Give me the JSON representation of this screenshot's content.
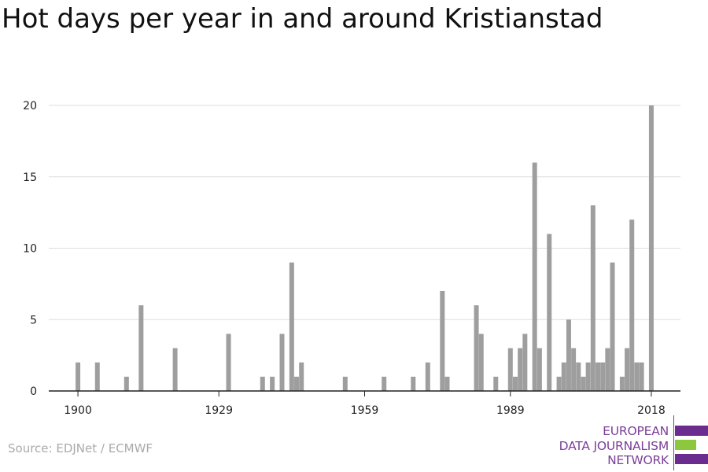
{
  "header": {
    "title": "Hot days per year in and around Kristianstad"
  },
  "footer": {
    "source": "Source: EDJNet / ECMWF"
  },
  "logo": {
    "lines": [
      "EUROPEAN",
      "DATA JOURNALISM",
      "NETWORK"
    ],
    "colors": {
      "text": "#7b3f98",
      "bar_purple": "#6a2c8e",
      "bar_green": "#8dc63f"
    }
  },
  "colors": {
    "bar": "#9e9e9e",
    "grid": "#dddddd",
    "axis": "#222222"
  },
  "chart_data": {
    "type": "bar",
    "title": "Hot days per year in and around Kristianstad",
    "xlabel": "",
    "ylabel": "",
    "x_ticks": [
      "1900",
      "1929",
      "1959",
      "1989",
      "2018"
    ],
    "y_ticks": [
      "0",
      "5",
      "10",
      "15",
      "20"
    ],
    "xlim": [
      1894,
      2024
    ],
    "ylim": [
      0,
      20
    ],
    "grid": true,
    "years": [
      1900,
      1904,
      1910,
      1913,
      1920,
      1931,
      1938,
      1940,
      1942,
      1944,
      1945,
      1946,
      1955,
      1963,
      1969,
      1972,
      1975,
      1976,
      1982,
      1983,
      1986,
      1989,
      1990,
      1991,
      1992,
      1994,
      1995,
      1997,
      1999,
      2000,
      2001,
      2002,
      2003,
      2004,
      2005,
      2006,
      2007,
      2008,
      2009,
      2010,
      2012,
      2013,
      2014,
      2015,
      2016,
      2018
    ],
    "values": [
      2,
      2,
      1,
      6,
      3,
      4,
      1,
      1,
      4,
      9,
      1,
      2,
      1,
      1,
      1,
      2,
      7,
      1,
      6,
      4,
      1,
      3,
      1,
      3,
      4,
      16,
      3,
      11,
      1,
      2,
      5,
      3,
      2,
      1,
      2,
      13,
      2,
      2,
      3,
      9,
      1,
      3,
      12,
      2,
      2,
      20
    ]
  }
}
